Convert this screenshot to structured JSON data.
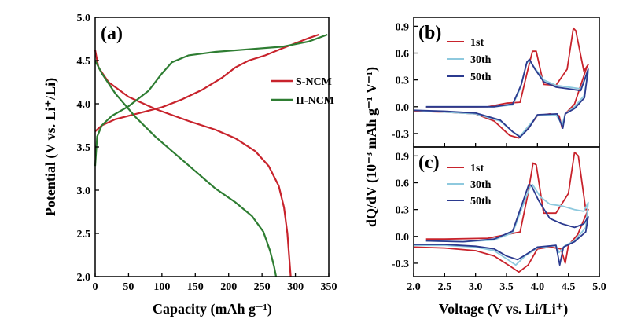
{
  "colors": {
    "red": "#c8232c",
    "green": "#2e7d32",
    "light_blue": "#8ec9de",
    "navy": "#2b3a8f"
  },
  "chart_data": [
    {
      "id": "a",
      "panel_label": "(a)",
      "type": "line",
      "xlabel": "Capacity (mAh g⁻¹)",
      "ylabel": "Potential (V vs. Li⁺/Li)",
      "xlim": [
        0,
        350
      ],
      "ylim": [
        2.0,
        5.0
      ],
      "xticks": [
        "0",
        "50",
        "100",
        "150",
        "200",
        "250",
        "300",
        "350"
      ],
      "yticks": [
        "2.0",
        "2.5",
        "3.0",
        "3.5",
        "4.0",
        "4.5",
        "5.0"
      ],
      "legend_position": "center-right",
      "series": [
        {
          "name": "S-NCM",
          "color": "#c8232c",
          "charge": [
            [
              0,
              3.68
            ],
            [
              10,
              3.75
            ],
            [
              30,
              3.82
            ],
            [
              60,
              3.88
            ],
            [
              100,
              3.96
            ],
            [
              130,
              4.05
            ],
            [
              160,
              4.16
            ],
            [
              190,
              4.3
            ],
            [
              210,
              4.42
            ],
            [
              230,
              4.5
            ],
            [
              255,
              4.56
            ],
            [
              280,
              4.64
            ],
            [
              300,
              4.7
            ],
            [
              320,
              4.76
            ],
            [
              335,
              4.8
            ]
          ],
          "discharge": [
            [
              0,
              4.62
            ],
            [
              5,
              4.42
            ],
            [
              20,
              4.25
            ],
            [
              50,
              4.08
            ],
            [
              90,
              3.94
            ],
            [
              140,
              3.8
            ],
            [
              180,
              3.7
            ],
            [
              210,
              3.6
            ],
            [
              240,
              3.45
            ],
            [
              260,
              3.28
            ],
            [
              275,
              3.05
            ],
            [
              283,
              2.8
            ],
            [
              288,
              2.5
            ],
            [
              291,
              2.2
            ],
            [
              293,
              2.0
            ]
          ]
        },
        {
          "name": "II-NCM",
          "color": "#2e7d32",
          "charge": [
            [
              0,
              3.28
            ],
            [
              3,
              3.62
            ],
            [
              10,
              3.75
            ],
            [
              25,
              3.86
            ],
            [
              50,
              3.97
            ],
            [
              80,
              4.15
            ],
            [
              100,
              4.35
            ],
            [
              115,
              4.48
            ],
            [
              140,
              4.56
            ],
            [
              180,
              4.6
            ],
            [
              230,
              4.63
            ],
            [
              280,
              4.66
            ],
            [
              320,
              4.72
            ],
            [
              348,
              4.8
            ]
          ],
          "discharge": [
            [
              0,
              4.5
            ],
            [
              10,
              4.35
            ],
            [
              30,
              4.12
            ],
            [
              60,
              3.85
            ],
            [
              90,
              3.62
            ],
            [
              120,
              3.42
            ],
            [
              150,
              3.22
            ],
            [
              180,
              3.02
            ],
            [
              210,
              2.86
            ],
            [
              235,
              2.7
            ],
            [
              252,
              2.52
            ],
            [
              262,
              2.3
            ],
            [
              268,
              2.12
            ],
            [
              271,
              2.0
            ]
          ]
        }
      ]
    },
    {
      "id": "b",
      "panel_label": "(b)",
      "type": "line",
      "xlim": [
        2.0,
        5.0
      ],
      "ylim": [
        -0.45,
        1.0
      ],
      "yticks": [
        "-0.3",
        "0.0",
        "0.3",
        "0.6",
        "0.9"
      ],
      "legend_position": "top-center",
      "series": [
        {
          "name": "1st",
          "color": "#c8232c",
          "points": [
            [
              2.0,
              -0.05
            ],
            [
              2.5,
              -0.06
            ],
            [
              3.0,
              -0.08
            ],
            [
              3.3,
              -0.16
            ],
            [
              3.55,
              -0.32
            ],
            [
              3.7,
              -0.35
            ],
            [
              3.85,
              -0.24
            ],
            [
              4.0,
              -0.1
            ],
            [
              4.2,
              -0.08
            ],
            [
              4.35,
              -0.1
            ],
            [
              4.4,
              -0.24
            ],
            [
              4.45,
              -0.08
            ],
            [
              4.6,
              0.03
            ],
            [
              4.8,
              0.45
            ],
            [
              4.82,
              0.47
            ],
            [
              4.75,
              0.4
            ],
            [
              4.62,
              0.85
            ],
            [
              4.58,
              0.88
            ],
            [
              4.48,
              0.42
            ],
            [
              4.3,
              0.24
            ],
            [
              4.1,
              0.25
            ],
            [
              3.98,
              0.62
            ],
            [
              3.92,
              0.62
            ],
            [
              3.84,
              0.4
            ],
            [
              3.72,
              0.05
            ],
            [
              3.5,
              0.04
            ],
            [
              3.2,
              0.0
            ],
            [
              2.5,
              -0.01
            ],
            [
              2.2,
              -0.01
            ]
          ]
        },
        {
          "name": "30th",
          "color": "#8ec9de",
          "points": [
            [
              2.2,
              0.0
            ],
            [
              2.8,
              0.0
            ],
            [
              3.3,
              0.0
            ],
            [
              3.6,
              0.02
            ],
            [
              3.72,
              0.2
            ],
            [
              3.82,
              0.48
            ],
            [
              3.86,
              0.52
            ],
            [
              3.95,
              0.44
            ],
            [
              4.1,
              0.3
            ],
            [
              4.3,
              0.24
            ],
            [
              4.5,
              0.22
            ],
            [
              4.7,
              0.2
            ],
            [
              4.82,
              0.38
            ],
            [
              4.75,
              0.12
            ],
            [
              4.6,
              0.0
            ],
            [
              4.45,
              -0.08
            ],
            [
              4.4,
              -0.2
            ],
            [
              4.3,
              -0.09
            ],
            [
              4.0,
              -0.1
            ],
            [
              3.85,
              -0.22
            ],
            [
              3.72,
              -0.33
            ],
            [
              3.6,
              -0.28
            ],
            [
              3.4,
              -0.16
            ],
            [
              3.0,
              -0.08
            ],
            [
              2.5,
              -0.06
            ],
            [
              2.0,
              -0.04
            ]
          ]
        },
        {
          "name": "50th",
          "color": "#2b3a8f",
          "points": [
            [
              2.2,
              0.0
            ],
            [
              2.8,
              0.0
            ],
            [
              3.3,
              0.0
            ],
            [
              3.6,
              0.03
            ],
            [
              3.74,
              0.25
            ],
            [
              3.83,
              0.5
            ],
            [
              3.87,
              0.53
            ],
            [
              3.96,
              0.42
            ],
            [
              4.1,
              0.28
            ],
            [
              4.3,
              0.22
            ],
            [
              4.5,
              0.2
            ],
            [
              4.7,
              0.18
            ],
            [
              4.82,
              0.42
            ],
            [
              4.76,
              0.1
            ],
            [
              4.6,
              -0.02
            ],
            [
              4.45,
              -0.08
            ],
            [
              4.41,
              -0.24
            ],
            [
              4.32,
              -0.08
            ],
            [
              4.0,
              -0.09
            ],
            [
              3.86,
              -0.24
            ],
            [
              3.72,
              -0.34
            ],
            [
              3.6,
              -0.28
            ],
            [
              3.4,
              -0.15
            ],
            [
              3.0,
              -0.07
            ],
            [
              2.5,
              -0.05
            ],
            [
              2.0,
              -0.04
            ]
          ]
        }
      ]
    },
    {
      "id": "c",
      "panel_label": "(c)",
      "type": "line",
      "xlabel": "Voltage (V vs. Li/Li⁺)",
      "ylabel": "dQ/dV (10⁻³ mAh g⁻¹ V⁻¹)",
      "xlim": [
        2.0,
        5.0
      ],
      "ylim": [
        -0.45,
        1.0
      ],
      "xticks": [
        "2.0",
        "2.5",
        "3.0",
        "3.5",
        "4.0",
        "4.5",
        "5.0"
      ],
      "yticks": [
        "-0.3",
        "0.0",
        "0.3",
        "0.6",
        "0.9"
      ],
      "legend_position": "top-center",
      "series": [
        {
          "name": "1st",
          "color": "#c8232c",
          "points": [
            [
              2.0,
              -0.12
            ],
            [
              2.5,
              -0.13
            ],
            [
              3.0,
              -0.16
            ],
            [
              3.3,
              -0.22
            ],
            [
              3.55,
              -0.33
            ],
            [
              3.7,
              -0.4
            ],
            [
              3.85,
              -0.32
            ],
            [
              4.0,
              -0.14
            ],
            [
              4.2,
              -0.12
            ],
            [
              4.38,
              -0.14
            ],
            [
              4.45,
              -0.3
            ],
            [
              4.5,
              -0.1
            ],
            [
              4.65,
              0.02
            ],
            [
              4.82,
              0.3
            ],
            [
              4.78,
              0.3
            ],
            [
              4.66,
              0.9
            ],
            [
              4.6,
              0.94
            ],
            [
              4.5,
              0.48
            ],
            [
              4.3,
              0.26
            ],
            [
              4.1,
              0.26
            ],
            [
              3.98,
              0.8
            ],
            [
              3.93,
              0.82
            ],
            [
              3.84,
              0.45
            ],
            [
              3.72,
              0.05
            ],
            [
              3.5,
              0.02
            ],
            [
              3.2,
              -0.02
            ],
            [
              2.5,
              -0.03
            ],
            [
              2.2,
              -0.03
            ]
          ]
        },
        {
          "name": "30th",
          "color": "#8ec9de",
          "points": [
            [
              2.2,
              -0.05
            ],
            [
              2.8,
              -0.06
            ],
            [
              3.3,
              -0.04
            ],
            [
              3.6,
              0.04
            ],
            [
              3.75,
              0.32
            ],
            [
              3.88,
              0.55
            ],
            [
              3.92,
              0.58
            ],
            [
              4.05,
              0.44
            ],
            [
              4.2,
              0.36
            ],
            [
              4.4,
              0.34
            ],
            [
              4.6,
              0.3
            ],
            [
              4.75,
              0.28
            ],
            [
              4.82,
              0.38
            ],
            [
              4.78,
              0.1
            ],
            [
              4.6,
              -0.05
            ],
            [
              4.45,
              -0.1
            ],
            [
              4.35,
              -0.18
            ],
            [
              4.3,
              -0.1
            ],
            [
              4.0,
              -0.13
            ],
            [
              3.8,
              -0.22
            ],
            [
              3.65,
              -0.32
            ],
            [
              3.5,
              -0.25
            ],
            [
              3.3,
              -0.16
            ],
            [
              3.0,
              -0.12
            ],
            [
              2.5,
              -0.1
            ],
            [
              2.0,
              -0.1
            ]
          ]
        },
        {
          "name": "50th",
          "color": "#2b3a8f",
          "points": [
            [
              2.2,
              -0.05
            ],
            [
              2.8,
              -0.06
            ],
            [
              3.3,
              -0.03
            ],
            [
              3.6,
              0.06
            ],
            [
              3.76,
              0.38
            ],
            [
              3.86,
              0.58
            ],
            [
              3.9,
              0.57
            ],
            [
              4.02,
              0.4
            ],
            [
              4.2,
              0.2
            ],
            [
              4.4,
              0.14
            ],
            [
              4.6,
              0.1
            ],
            [
              4.75,
              0.14
            ],
            [
              4.82,
              0.22
            ],
            [
              4.78,
              0.05
            ],
            [
              4.6,
              -0.06
            ],
            [
              4.42,
              -0.12
            ],
            [
              4.36,
              -0.32
            ],
            [
              4.3,
              -0.1
            ],
            [
              4.0,
              -0.12
            ],
            [
              3.82,
              -0.2
            ],
            [
              3.68,
              -0.26
            ],
            [
              3.5,
              -0.22
            ],
            [
              3.3,
              -0.14
            ],
            [
              3.0,
              -0.11
            ],
            [
              2.5,
              -0.09
            ],
            [
              2.0,
              -0.09
            ]
          ]
        }
      ]
    }
  ]
}
